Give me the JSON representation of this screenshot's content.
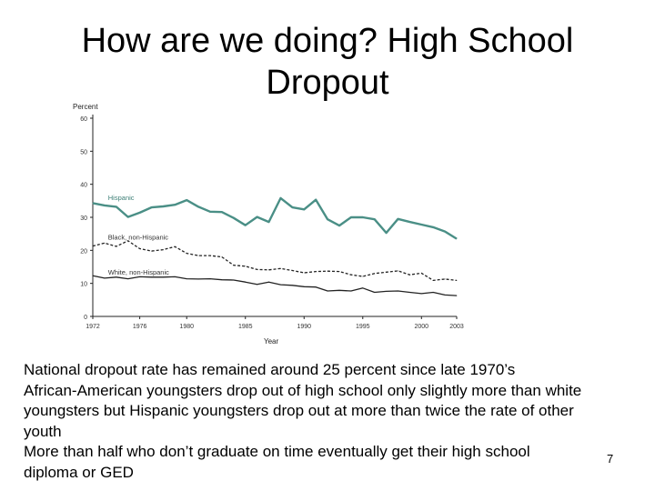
{
  "slide": {
    "title_line1": "How are we doing? High School",
    "title_line2": "Dropout",
    "notes": [
      "National dropout rate has remained around 25 percent since late 1970’s",
      "African-American youngsters drop out of high school only slightly more than white",
      "youngsters but Hispanic youngsters drop out at more than twice the rate of other",
      "youth",
      "More than half who don’t graduate on time eventually get their high school",
      "diploma or GED"
    ],
    "page_number": "7"
  },
  "chart_data": {
    "type": "line",
    "ylabel": "Percent",
    "xlabel": "Year",
    "ylim": [
      0,
      60
    ],
    "xlim": [
      1972,
      2003
    ],
    "y_ticks": [
      0,
      10,
      20,
      30,
      40,
      50,
      60
    ],
    "x_ticks": [
      1972,
      1976,
      1980,
      1985,
      1990,
      1995,
      2000,
      2003
    ],
    "x_tick_labels": [
      "1972",
      "1976",
      "1980",
      "1985",
      "1990",
      "1995",
      "2000",
      "2003"
    ],
    "grid": false,
    "legend": "inline labels on lines",
    "x": [
      1972,
      1973,
      1974,
      1975,
      1976,
      1977,
      1978,
      1979,
      1980,
      1981,
      1982,
      1983,
      1984,
      1985,
      1986,
      1987,
      1988,
      1989,
      1990,
      1991,
      1992,
      1993,
      1994,
      1995,
      1996,
      1997,
      1998,
      1999,
      2000,
      2001,
      2002,
      2003
    ],
    "series": [
      {
        "name": "Hispanic",
        "color": "#4a8f86",
        "style": "solid",
        "values": [
          34.3,
          33.6,
          33.2,
          30.1,
          31.4,
          33.0,
          33.3,
          33.8,
          35.2,
          33.2,
          31.7,
          31.6,
          29.8,
          27.6,
          30.1,
          28.6,
          35.8,
          33.0,
          32.4,
          35.3,
          29.4,
          27.5,
          30.0,
          30.0,
          29.4,
          25.3,
          29.5,
          28.6,
          27.8,
          27.0,
          25.7,
          23.5
        ]
      },
      {
        "name": "Black, non-Hispanic",
        "color": "#222222",
        "style": "dashed",
        "values": [
          21.3,
          22.2,
          21.2,
          22.9,
          20.5,
          19.8,
          20.2,
          21.1,
          19.1,
          18.4,
          18.4,
          18.0,
          15.5,
          15.2,
          14.2,
          14.1,
          14.5,
          13.9,
          13.2,
          13.6,
          13.7,
          13.6,
          12.6,
          12.1,
          13.0,
          13.4,
          13.8,
          12.6,
          13.1,
          10.9,
          11.3,
          10.9
        ]
      },
      {
        "name": "White, non-Hispanic",
        "color": "#222222",
        "style": "solid",
        "values": [
          12.3,
          11.6,
          11.9,
          11.4,
          12.0,
          11.9,
          11.9,
          12.0,
          11.4,
          11.3,
          11.4,
          11.1,
          11.0,
          10.4,
          9.7,
          10.4,
          9.6,
          9.4,
          9.0,
          8.9,
          7.7,
          7.9,
          7.7,
          8.6,
          7.3,
          7.6,
          7.7,
          7.3,
          6.9,
          7.3,
          6.5,
          6.3
        ]
      }
    ]
  }
}
